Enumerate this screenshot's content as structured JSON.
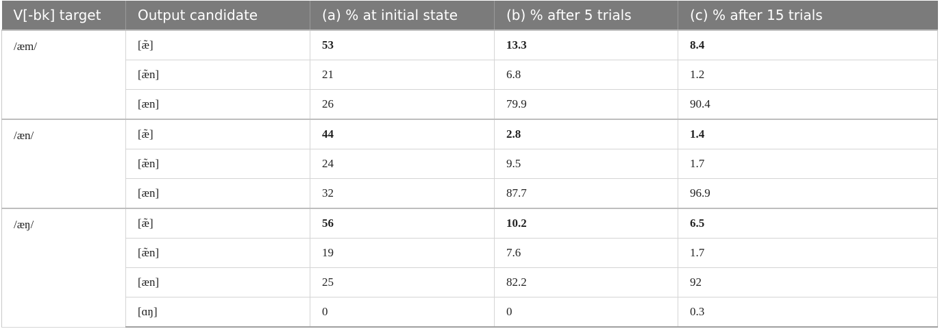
{
  "table": {
    "headers": [
      "V[-bk] target",
      "Output candidate",
      "(a) % at initial state",
      "(b) % after 5 trials",
      "(c) % after 15 trials"
    ],
    "groups": [
      {
        "target": "/æm/",
        "rows": [
          {
            "candidate": "[æ̃]",
            "a": "53",
            "b": "13.3",
            "c": "8.4",
            "bold": true
          },
          {
            "candidate": "[æ̃n]",
            "a": "21",
            "b": "6.8",
            "c": "1.2",
            "bold": false
          },
          {
            "candidate": "[æn]",
            "a": "26",
            "b": "79.9",
            "c": "90.4",
            "bold": false
          }
        ]
      },
      {
        "target": "/æn/",
        "rows": [
          {
            "candidate": "[æ̃]",
            "a": "44",
            "b": "2.8",
            "c": "1.4",
            "bold": true
          },
          {
            "candidate": "[æ̃n]",
            "a": "24",
            "b": "9.5",
            "c": "1.7",
            "bold": false
          },
          {
            "candidate": "[æn]",
            "a": "32",
            "b": "87.7",
            "c": "96.9",
            "bold": false
          }
        ]
      },
      {
        "target": "/æŋ/",
        "rows": [
          {
            "candidate": "[æ̃]",
            "a": "56",
            "b": "10.2",
            "c": "6.5",
            "bold": true
          },
          {
            "candidate": "[æ̃n]",
            "a": "19",
            "b": "7.6",
            "c": "1.7",
            "bold": false
          },
          {
            "candidate": "[æn]",
            "a": "25",
            "b": "82.2",
            "c": "92",
            "bold": false
          },
          {
            "candidate": "[ɑŋ]",
            "a": "0",
            "b": "0",
            "c": "0.3",
            "bold": false
          }
        ]
      }
    ]
  }
}
